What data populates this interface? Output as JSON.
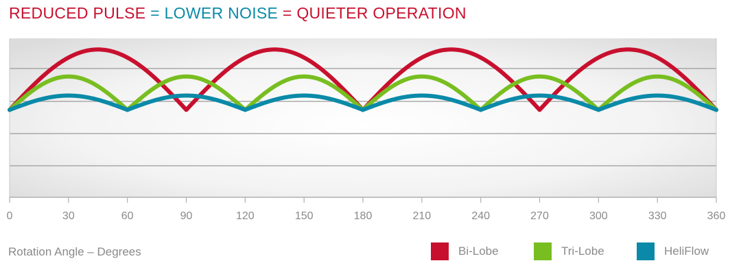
{
  "header": {
    "title_parts": [
      {
        "text": "REDUCED PULSE",
        "color": "#c8102e"
      },
      {
        "text": " = ",
        "color": "#0a8aa8"
      },
      {
        "text": "LOWER NOISE",
        "color": "#0a8aa8"
      },
      {
        "text": " = ",
        "color": "#c8102e"
      },
      {
        "text": "QUIETER OPERATION",
        "color": "#c8102e"
      }
    ]
  },
  "chart_data": {
    "type": "line",
    "title": "REDUCED PULSE = LOWER NOISE = QUIETER OPERATION",
    "xlabel": "Rotation Angle – Degrees",
    "ylabel": "",
    "x_ticks": [
      "0",
      "30",
      "60",
      "90",
      "120",
      "150",
      "180",
      "210",
      "240",
      "270",
      "300",
      "330",
      "360"
    ],
    "xlim": [
      0,
      360
    ],
    "ylim": [
      0,
      1
    ],
    "grid": true,
    "legend_position": "bottom-right",
    "series": [
      {
        "name": "Bi-Lobe",
        "color": "#c8102e",
        "period": 90,
        "trough": 0.55,
        "peak": 0.93,
        "peaks_at": [
          45,
          135,
          225,
          315
        ]
      },
      {
        "name": "Tri-Lobe",
        "color": "#78be20",
        "period": 60,
        "trough": 0.55,
        "peak": 0.76,
        "peaks_at": [
          30,
          90,
          150,
          210,
          270,
          330
        ]
      },
      {
        "name": "HeliFlow",
        "color": "#0a8aa8",
        "period": 60,
        "trough": 0.55,
        "peak": 0.64,
        "peaks_at": [
          30,
          90,
          150,
          210,
          270,
          330
        ]
      }
    ]
  },
  "legend": {
    "items": [
      {
        "label": "Bi-Lobe",
        "color": "#c8102e"
      },
      {
        "label": "Tri-Lobe",
        "color": "#78be20"
      },
      {
        "label": "HeliFlow",
        "color": "#0a8aa8"
      }
    ]
  }
}
